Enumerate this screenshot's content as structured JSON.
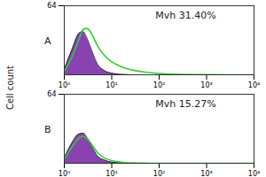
{
  "chart_data": [
    {
      "type": "line",
      "panel": "A",
      "annotation": "Mvh 31.40%",
      "ylabel": "Cell count",
      "log": "x",
      "grid": false,
      "xlim": [
        1,
        10000
      ],
      "xticks": [
        {
          "value": 1,
          "label": "10⁰"
        },
        {
          "value": 10,
          "label": "10¹"
        },
        {
          "value": 100,
          "label": "10²"
        },
        {
          "value": 1000,
          "label": "10³"
        },
        {
          "value": 10000,
          "label": "10⁴"
        }
      ],
      "ylim": [
        0,
        64
      ],
      "yticks": [
        64
      ],
      "x": [
        1,
        1.5,
        2,
        2.5,
        3,
        4,
        5,
        7,
        10,
        15,
        20,
        30,
        50,
        100,
        200,
        1000,
        10000
      ],
      "series": [
        {
          "type": "area",
          "color": "#7b2fa8",
          "values": [
            5,
            25,
            38,
            40,
            34,
            20,
            10,
            4,
            1.5,
            0.5,
            0.2,
            0,
            0,
            0,
            0,
            0,
            0
          ]
        },
        {
          "type": "line",
          "color": "#33cc33",
          "values": [
            3,
            18,
            32,
            42,
            43,
            36,
            27,
            18,
            12,
            8,
            6,
            4,
            2.5,
            1.2,
            0.5,
            0.1,
            0
          ]
        }
      ]
    },
    {
      "type": "line",
      "panel": "B",
      "annotation": "Mvh 15.27%",
      "log": "x",
      "grid": false,
      "xlim": [
        1,
        10000
      ],
      "xticks": [
        {
          "value": 1,
          "label": "10⁰"
        },
        {
          "value": 10,
          "label": "10¹"
        },
        {
          "value": 100,
          "label": "10²"
        },
        {
          "value": 1000,
          "label": "10³"
        },
        {
          "value": 10000,
          "label": "10⁴"
        }
      ],
      "ylim": [
        0,
        64
      ],
      "yticks": [
        64
      ],
      "x": [
        1,
        1.5,
        2,
        2.5,
        3,
        4,
        5,
        7,
        10,
        15,
        20,
        30,
        50,
        100,
        200,
        1000,
        10000
      ],
      "series": [
        {
          "type": "area",
          "color": "#7b2fa8",
          "values": [
            5,
            20,
            27,
            28,
            24,
            14,
            7,
            3,
            1,
            0.4,
            0.1,
            0,
            0,
            0,
            0,
            0,
            0
          ]
        },
        {
          "type": "line",
          "color": "#33cc33",
          "values": [
            4,
            16,
            23,
            25,
            23,
            16,
            10,
            5,
            2.5,
            1.2,
            0.6,
            0.3,
            0.1,
            0,
            0,
            0,
            0
          ]
        }
      ]
    }
  ]
}
